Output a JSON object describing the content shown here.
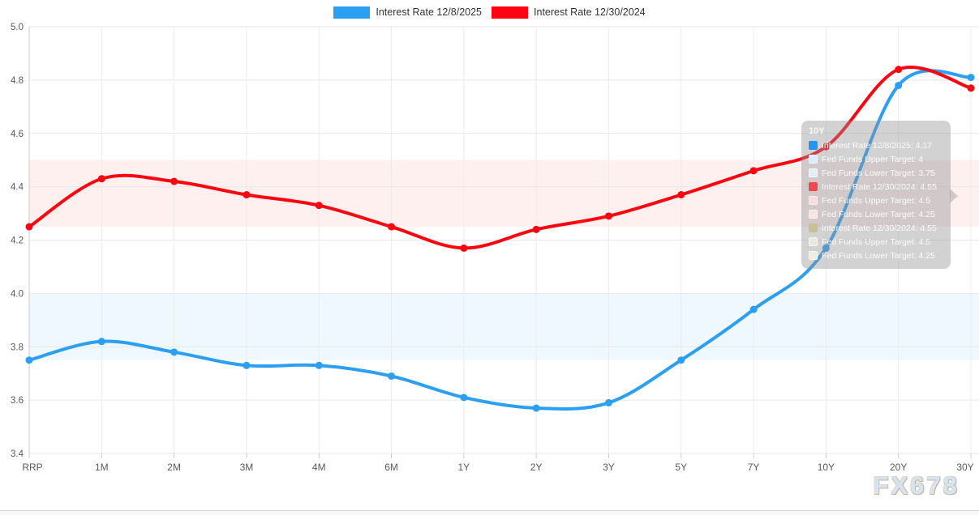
{
  "watermark": {
    "text": "FX678"
  },
  "tooltip": {
    "title": "10Y",
    "rows": [
      {
        "swatch": "#2196f3",
        "solid": true,
        "text": "Interest Rate 12/8/2025: 4.17"
      },
      {
        "swatch": "#dcebf9",
        "solid": false,
        "text": "Fed Funds Upper Target: 4"
      },
      {
        "swatch": "#e4effa",
        "solid": false,
        "text": "Fed Funds Lower Target: 3.75"
      },
      {
        "swatch": "#f0484c",
        "solid": true,
        "text": "Interest Rate 12/30/2024: 4.55"
      },
      {
        "swatch": "#f7dedd",
        "solid": false,
        "text": "Fed Funds Upper Target: 4.5"
      },
      {
        "swatch": "#f7e3e1",
        "solid": false,
        "text": "Fed Funds Lower Target: 4.25"
      },
      {
        "swatch": "#c7c097",
        "solid": true,
        "text": "Interest Rate 12/30/2024: 4.55"
      },
      {
        "swatch": "#eaeadf",
        "solid": false,
        "text": "Fed Funds Upper Target: 4.5"
      },
      {
        "swatch": "#ededE3",
        "solid": false,
        "text": "Fed Funds Lower Target: 4.25"
      }
    ]
  },
  "chart_data": {
    "type": "line",
    "title": "",
    "xlabel": "",
    "ylabel": "",
    "categories": [
      "RRP",
      "1M",
      "2M",
      "3M",
      "4M",
      "6M",
      "1Y",
      "2Y",
      "3Y",
      "5Y",
      "7Y",
      "10Y",
      "20Y",
      "30Y"
    ],
    "series": [
      {
        "name": "Interest Rate 12/8/2025",
        "color": "#2b9ff2",
        "values": [
          3.75,
          3.82,
          3.78,
          3.73,
          3.73,
          3.69,
          3.61,
          3.57,
          3.59,
          3.75,
          3.94,
          4.17,
          4.78,
          4.81
        ]
      },
      {
        "name": "Interest Rate 12/30/2024",
        "color": "#fb0511",
        "values": [
          4.25,
          4.43,
          4.42,
          4.37,
          4.33,
          4.25,
          4.17,
          4.24,
          4.29,
          4.37,
          4.46,
          4.55,
          4.84,
          4.77
        ]
      }
    ],
    "bands": [
      {
        "name": "Fed Funds target range (12/30/2024)",
        "from": 4.25,
        "to": 4.5,
        "color": "rgba(244,67,54,0.08)"
      },
      {
        "name": "Fed Funds target range (12/8/2025)",
        "from": 3.75,
        "to": 4.0,
        "color": "rgba(33,150,243,0.07)"
      }
    ],
    "ylim": [
      3.4,
      5.0
    ],
    "yticks": [
      5.0,
      4.8,
      4.6,
      4.4,
      4.2,
      4.0,
      3.8,
      3.6,
      3.4
    ],
    "grid": true,
    "legend_position": "top-center"
  }
}
